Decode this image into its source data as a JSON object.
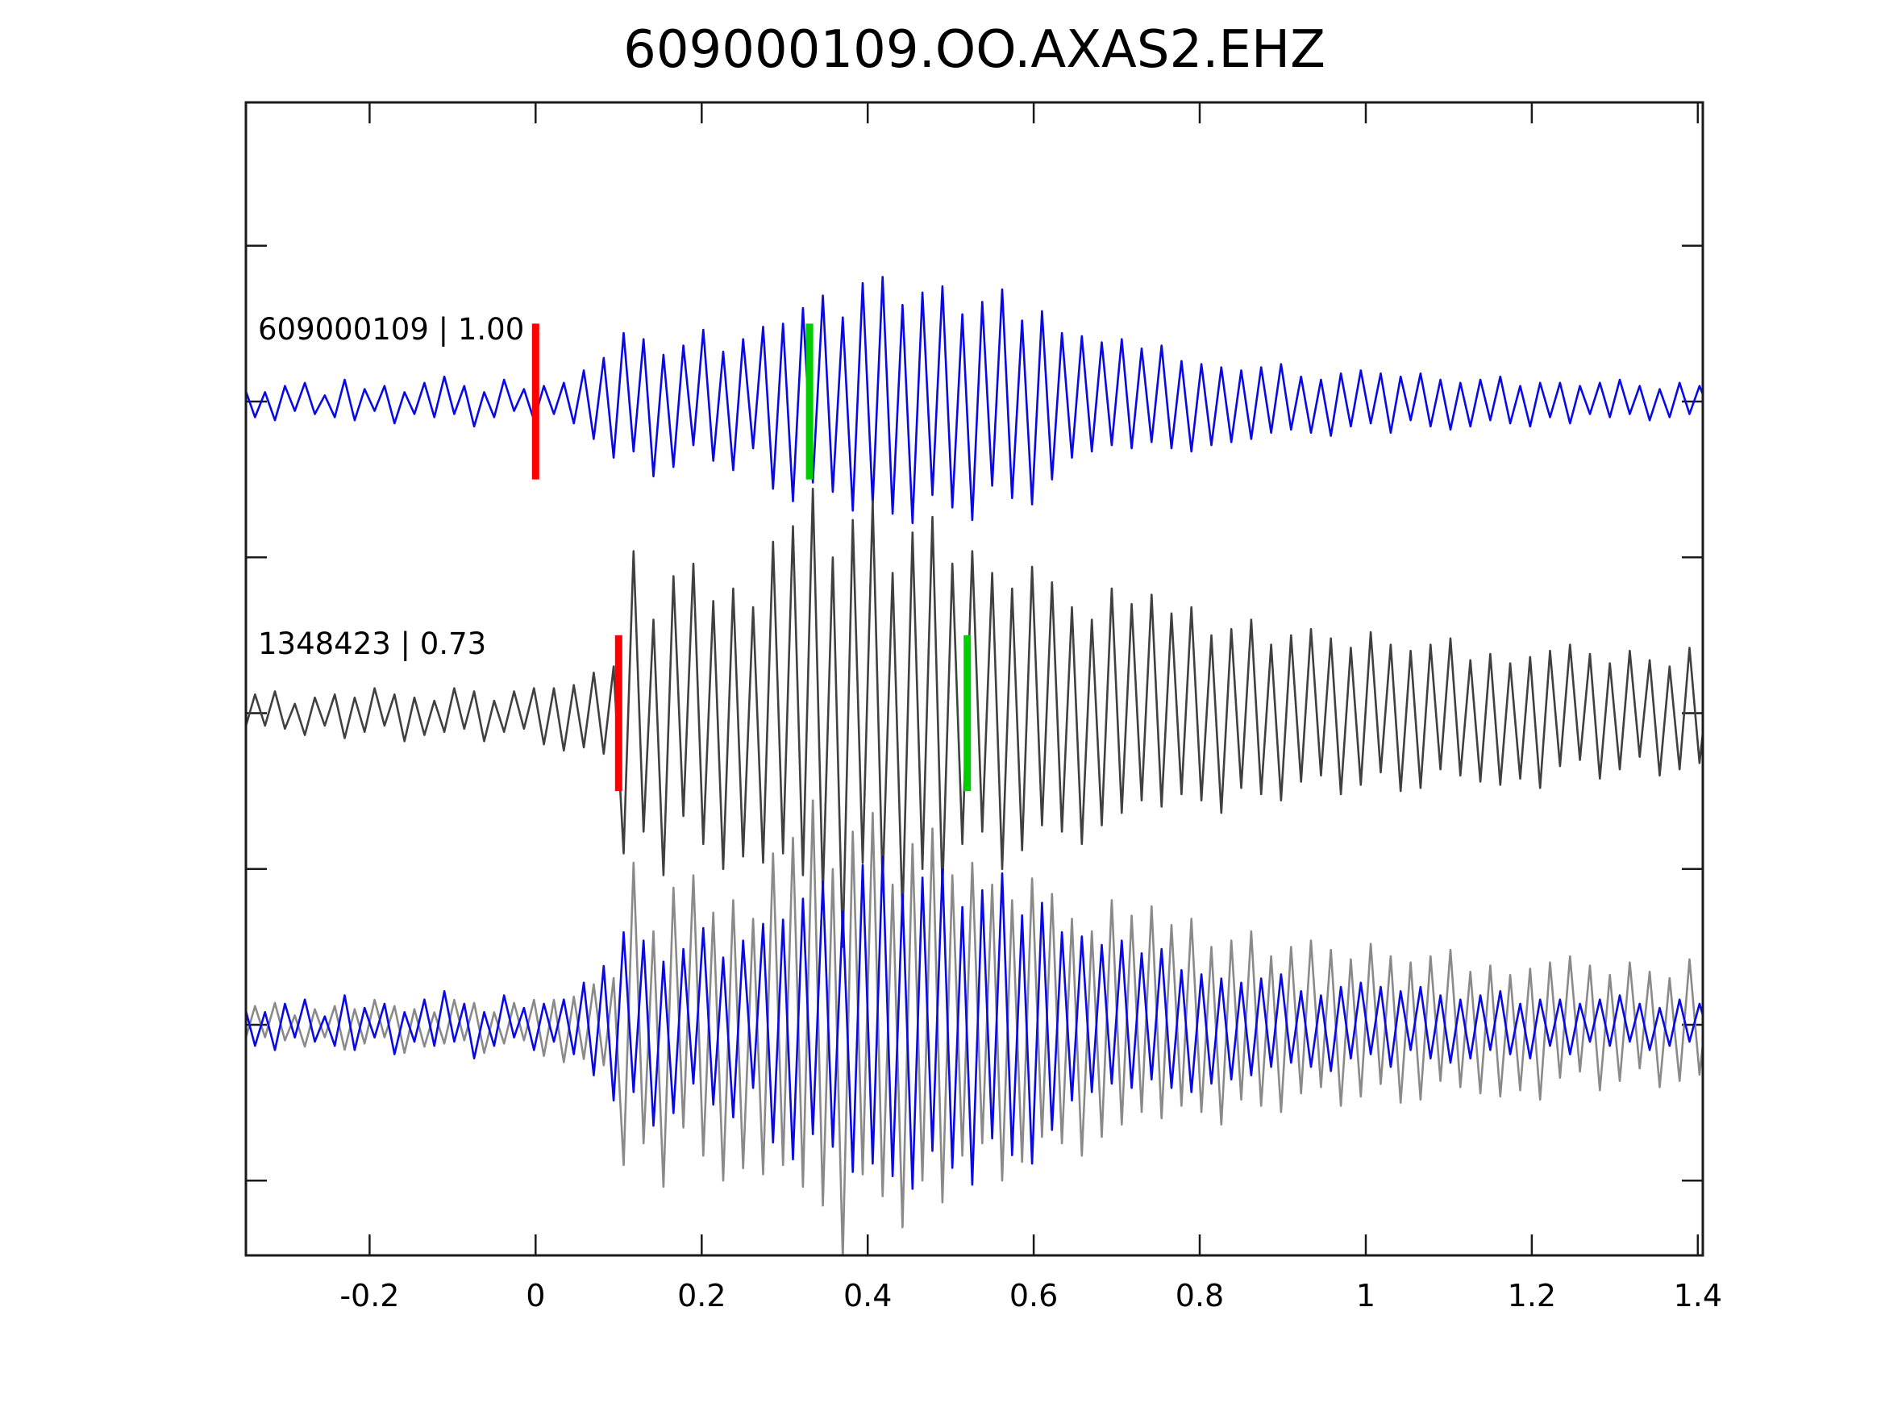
{
  "title": "609000109.OO.AXAS2.EHZ",
  "chart_data": {
    "type": "line",
    "subtype": "seismogram-template-match",
    "title": "609000109.OO.AXAS2.EHZ",
    "xlabel": "",
    "ylabel": "",
    "xlim": [
      -0.349,
      1.406
    ],
    "ylim": [
      -0.74,
      2.96
    ],
    "x_ticks": [
      {
        "v": -0.2,
        "label": "-0.2"
      },
      {
        "v": 0,
        "label": "0"
      },
      {
        "v": 0.2,
        "label": "0.2"
      },
      {
        "v": 0.4,
        "label": "0.4"
      },
      {
        "v": 0.6,
        "label": "0.6"
      },
      {
        "v": 0.8,
        "label": "0.8"
      },
      {
        "v": 1,
        "label": "1"
      },
      {
        "v": 1.2,
        "label": "1.2"
      },
      {
        "v": 1.4,
        "label": "1.4"
      }
    ],
    "y_ticks": [
      -0.5,
      0,
      0.5,
      1,
      1.5,
      2,
      2.5
    ],
    "grid": false,
    "legend_position": "none",
    "axis_color": "#1a1a1a",
    "pick_half_height": 0.25,
    "sample_start": -0.35,
    "sample_dt": 0.012,
    "series": {
      "template": {
        "name": "609000109",
        "color": "#0909e6",
        "y": [
          0.04,
          -0.05,
          0.03,
          -0.06,
          0.05,
          -0.03,
          0.06,
          -0.04,
          0.02,
          -0.05,
          0.07,
          -0.06,
          0.04,
          -0.03,
          0.05,
          -0.07,
          0.03,
          -0.04,
          0.06,
          -0.05,
          0.08,
          -0.04,
          0.05,
          -0.08,
          0.03,
          -0.05,
          0.07,
          -0.03,
          0.04,
          -0.06,
          0.05,
          -0.04,
          0.06,
          -0.07,
          0.1,
          -0.12,
          0.14,
          -0.18,
          0.22,
          -0.16,
          0.2,
          -0.24,
          0.15,
          -0.21,
          0.18,
          -0.14,
          0.23,
          -0.19,
          0.16,
          -0.22,
          0.2,
          -0.15,
          0.24,
          -0.28,
          0.25,
          -0.32,
          0.3,
          -0.26,
          0.34,
          -0.29,
          0.27,
          -0.35,
          0.38,
          -0.33,
          0.4,
          -0.36,
          0.31,
          -0.39,
          0.35,
          -0.3,
          0.37,
          -0.34,
          0.28,
          -0.38,
          0.32,
          -0.27,
          0.36,
          -0.31,
          0.26,
          -0.33,
          0.29,
          -0.25,
          0.22,
          -0.18,
          0.21,
          -0.16,
          0.19,
          -0.14,
          0.2,
          -0.15,
          0.17,
          -0.13,
          0.18,
          -0.15,
          0.13,
          -0.16,
          0.12,
          -0.14,
          0.11,
          -0.13,
          0.1,
          -0.12,
          0.11,
          -0.1,
          0.12,
          -0.09,
          0.08,
          -0.1,
          0.07,
          -0.11,
          0.09,
          -0.08,
          0.1,
          -0.07,
          0.09,
          -0.1,
          0.08,
          -0.06,
          0.09,
          -0.08,
          0.07,
          -0.09,
          0.06,
          -0.08,
          0.07,
          -0.06,
          0.08,
          -0.07,
          0.05,
          -0.08,
          0.06,
          -0.05,
          0.06,
          -0.07,
          0.05,
          -0.04,
          0.06,
          -0.05,
          0.07,
          -0.04,
          0.05,
          -0.06,
          0.04,
          -0.05,
          0.06,
          -0.04,
          0.05,
          -0.03,
          0.04
        ]
      },
      "detection": {
        "name": "1348423",
        "color": "#404040",
        "y": [
          -0.05,
          0.06,
          -0.04,
          0.07,
          -0.05,
          0.03,
          -0.07,
          0.05,
          -0.04,
          0.06,
          -0.08,
          0.05,
          -0.06,
          0.08,
          -0.04,
          0.06,
          -0.09,
          0.05,
          -0.07,
          0.04,
          -0.06,
          0.08,
          -0.05,
          0.07,
          -0.09,
          0.04,
          -0.06,
          0.07,
          -0.05,
          0.08,
          -0.1,
          0.08,
          -0.12,
          0.09,
          -0.11,
          0.13,
          -0.13,
          0.15,
          -0.45,
          0.52,
          -0.38,
          0.3,
          -0.52,
          0.44,
          -0.33,
          0.48,
          -0.42,
          0.36,
          -0.5,
          0.4,
          -0.46,
          0.34,
          -0.48,
          0.55,
          -0.45,
          0.6,
          -0.52,
          0.72,
          -0.58,
          0.5,
          -0.75,
          0.62,
          -0.48,
          0.68,
          -0.55,
          0.45,
          -0.65,
          0.58,
          -0.5,
          0.63,
          -0.57,
          0.48,
          -0.42,
          0.52,
          -0.38,
          0.45,
          -0.5,
          0.4,
          -0.44,
          0.47,
          -0.36,
          0.42,
          -0.38,
          0.34,
          -0.42,
          0.3,
          -0.36,
          0.4,
          -0.32,
          0.35,
          -0.28,
          0.38,
          -0.3,
          0.32,
          -0.26,
          0.34,
          -0.28,
          0.25,
          -0.32,
          0.27,
          -0.24,
          0.3,
          -0.26,
          0.22,
          -0.28,
          0.25,
          -0.22,
          0.27,
          -0.2,
          0.24,
          -0.26,
          0.21,
          -0.23,
          0.26,
          -0.19,
          0.22,
          -0.25,
          0.2,
          -0.24,
          0.22,
          -0.18,
          0.24,
          -0.2,
          0.17,
          -0.22,
          0.19,
          -0.23,
          0.16,
          -0.21,
          0.18,
          -0.24,
          0.2,
          -0.17,
          0.22,
          -0.15,
          0.19,
          -0.21,
          0.16,
          -0.18,
          0.2,
          -0.14,
          0.17,
          -0.2,
          0.15,
          -0.18,
          0.21,
          -0.16,
          0.13,
          -0.19
        ]
      }
    },
    "rows": [
      {
        "name": "template-row",
        "label": "609000109 | 1.00",
        "id": "609000109",
        "correlation": "1.00",
        "offset": 2,
        "plots": [
          {
            "series": "template",
            "color": "#0909e6",
            "scale": 1
          }
        ],
        "picks": [
          {
            "t": 0,
            "color": "#ff0000",
            "name": "pick-line-red"
          },
          {
            "t": 0.33,
            "color": "#00cc00",
            "name": "pick-line-green"
          }
        ]
      },
      {
        "name": "detection-row",
        "label": "1348423 | 0.73",
        "id": "1348423",
        "correlation": "0.73",
        "offset": 1,
        "plots": [
          {
            "series": "detection",
            "color": "#404040",
            "scale": 1
          }
        ],
        "picks": [
          {
            "t": 0.1,
            "color": "#ff0000",
            "name": "pick-line-red"
          },
          {
            "t": 0.52,
            "color": "#00cc00",
            "name": "pick-line-green"
          }
        ]
      },
      {
        "name": "overlay-row",
        "label": "",
        "offset": 0,
        "plots": [
          {
            "series": "detection",
            "color": "#8a8a8a",
            "scale": 1
          },
          {
            "series": "template",
            "color": "#0909e6",
            "scale": 1.35
          }
        ],
        "picks": []
      }
    ]
  }
}
